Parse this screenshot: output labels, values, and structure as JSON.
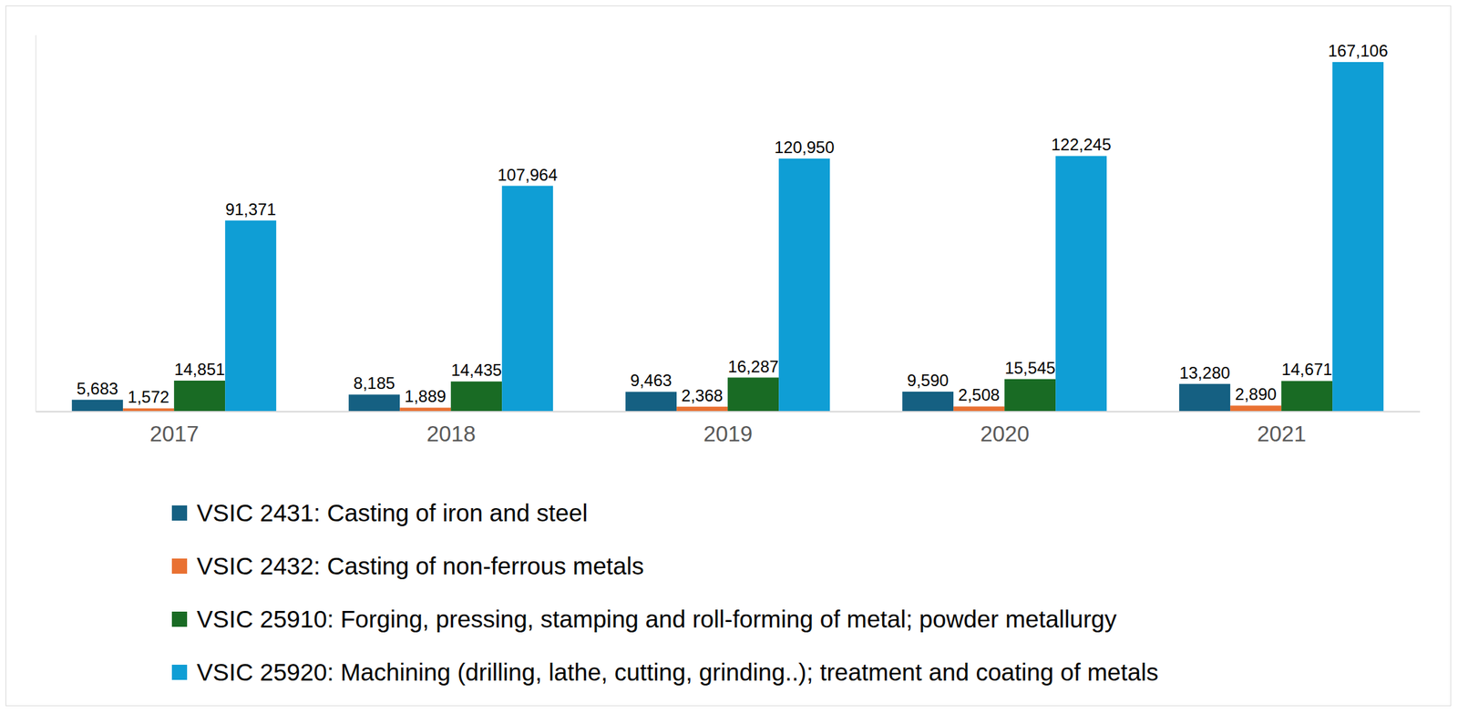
{
  "chart_data": {
    "type": "bar",
    "categories": [
      "2017",
      "2018",
      "2019",
      "2020",
      "2021"
    ],
    "series": [
      {
        "name": "VSIC 2431:  Casting of iron and steel",
        "color": "#156082",
        "values": [
          5683,
          8185,
          9463,
          9590,
          13280
        ],
        "value_labels": [
          "5,683",
          "8,185",
          "9,463",
          "9,590",
          "13,280"
        ]
      },
      {
        "name": "VSIC 2432: Casting of non-ferrous metals",
        "color": "#E97132",
        "values": [
          1572,
          1889,
          2368,
          2508,
          2890
        ],
        "value_labels": [
          "1,572",
          "1,889",
          "2,368",
          "2,508",
          "2,890"
        ]
      },
      {
        "name": "VSIC 25910: Forging, pressing, stamping and roll-forming of metal; powder metallurgy",
        "color": "#196B24",
        "values": [
          14851,
          14435,
          16287,
          15545,
          14671
        ],
        "value_labels": [
          "14,851",
          "14,435",
          "16,287",
          "15,545",
          "14,671"
        ]
      },
      {
        "name": "VSIC 25920: Machining (drilling, lathe, cutting, grinding..); treatment and coating of metals",
        "color": "#0F9ED5",
        "values": [
          91371,
          107964,
          120950,
          122245,
          167106
        ],
        "value_labels": [
          "91,371",
          "107,964",
          "120,950",
          "122,245",
          "167,106"
        ]
      }
    ],
    "ylim": [
      0,
      180000
    ],
    "data_labels": true,
    "tick_labels": "x",
    "grid": false,
    "legend": "bottom"
  }
}
